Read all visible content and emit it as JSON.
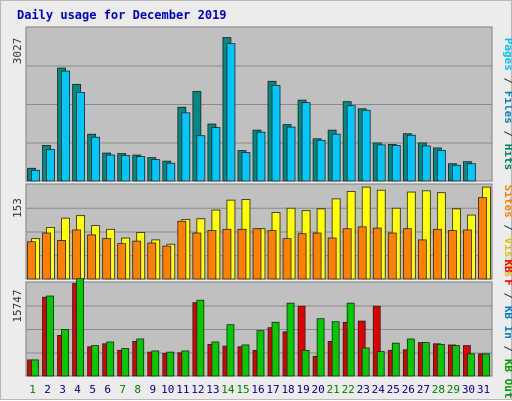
{
  "title": "Daily usage for December 2019",
  "colors": {
    "title": "#0000cc",
    "panel_bg": "#c0c0c0",
    "grid": "#8a8a8a",
    "pages": "#00c0ff",
    "files": "#008080",
    "hits": "#00805c",
    "visits": "#ffff00",
    "sites": "#ff8000",
    "kb_out": "#00c000",
    "kb_in": "#ff0000",
    "slash": "#333333",
    "day_weekday": "#000099",
    "day_weekend": "#008000"
  },
  "right_labels": {
    "top": [
      {
        "text": "Pages",
        "color": "#00c0ff"
      },
      {
        "text": " / ",
        "color": "#333333"
      },
      {
        "text": "Files",
        "color": "#0080c0"
      },
      {
        "text": " / ",
        "color": "#333333"
      },
      {
        "text": "Hits",
        "color": "#008060"
      }
    ],
    "middle": [
      {
        "text": "Sites",
        "color": "#ff8000"
      },
      {
        "text": " / ",
        "color": "#333333"
      },
      {
        "text": "Visits",
        "color": "#e0c000"
      }
    ],
    "bottom": [
      {
        "text": "KB F",
        "color": "#ff0000"
      },
      {
        "text": " / ",
        "color": "#333333"
      },
      {
        "text": "KB In",
        "color": "#0080c0"
      },
      {
        "text": " / ",
        "color": "#333333"
      },
      {
        "text": "KB Out",
        "color": "#00a000"
      }
    ]
  },
  "chart_data": [
    {
      "type": "bar",
      "panel": "hits-files-pages",
      "ymax_label": "3027",
      "ylim": [
        0,
        3027
      ],
      "categories": [
        "1",
        "2",
        "3",
        "4",
        "5",
        "6",
        "7",
        "8",
        "9",
        "10",
        "11",
        "12",
        "13",
        "14",
        "15",
        "16",
        "17",
        "18",
        "19",
        "20",
        "21",
        "22",
        "23",
        "24",
        "25",
        "26",
        "27",
        "28",
        "29",
        "30",
        "31"
      ],
      "weekend_days": [
        "1",
        "7",
        "8",
        "14",
        "15",
        "21",
        "22",
        "28",
        "29"
      ],
      "series": [
        {
          "name": "Hits",
          "values": [
            250,
            700,
            2220,
            1900,
            920,
            550,
            540,
            510,
            460,
            390,
            1450,
            1760,
            1120,
            2820,
            600,
            1000,
            1960,
            1110,
            1590,
            830,
            1000,
            1560,
            1420,
            750,
            720,
            930,
            750,
            650,
            340,
            380,
            0
          ]
        },
        {
          "name": "Files",
          "values": [
            210,
            620,
            2160,
            1740,
            860,
            510,
            500,
            480,
            420,
            350,
            1340,
            890,
            1050,
            2700,
            560,
            960,
            1880,
            1060,
            1540,
            800,
            920,
            1480,
            1390,
            710,
            700,
            900,
            690,
            600,
            310,
            340,
            0
          ]
        },
        {
          "name": "Pages",
          "values": [
            0,
            0,
            0,
            0,
            0,
            0,
            0,
            0,
            0,
            0,
            0,
            0,
            0,
            0,
            0,
            0,
            0,
            0,
            0,
            0,
            0,
            0,
            0,
            0,
            0,
            0,
            0,
            0,
            0,
            0,
            0
          ]
        }
      ]
    },
    {
      "type": "bar",
      "panel": "visits-sites",
      "ymax_label": "153",
      "ylim": [
        0,
        153
      ],
      "categories": [
        "1",
        "2",
        "3",
        "4",
        "5",
        "6",
        "7",
        "8",
        "9",
        "10",
        "11",
        "12",
        "13",
        "14",
        "15",
        "16",
        "17",
        "18",
        "19",
        "20",
        "21",
        "22",
        "23",
        "24",
        "25",
        "26",
        "27",
        "28",
        "29",
        "30",
        "31"
      ],
      "series": [
        {
          "name": "Visits",
          "values": [
            65,
            83,
            98,
            102,
            86,
            80,
            66,
            75,
            63,
            56,
            96,
            97,
            111,
            127,
            128,
            81,
            107,
            114,
            110,
            113,
            129,
            141,
            148,
            143,
            114,
            140,
            142,
            139,
            113,
            103,
            148
          ]
        },
        {
          "name": "Sites",
          "values": [
            60,
            74,
            62,
            79,
            71,
            65,
            57,
            61,
            58,
            53,
            93,
            74,
            78,
            80,
            80,
            81,
            78,
            65,
            73,
            74,
            66,
            81,
            84,
            82,
            74,
            81,
            63,
            80,
            78,
            79,
            131
          ]
        }
      ]
    },
    {
      "type": "bar",
      "panel": "kb",
      "ymax_label": "15747",
      "ylim": [
        0,
        15747
      ],
      "categories": [
        "1",
        "2",
        "3",
        "4",
        "5",
        "6",
        "7",
        "8",
        "9",
        "10",
        "11",
        "12",
        "13",
        "14",
        "15",
        "16",
        "17",
        "18",
        "19",
        "20",
        "21",
        "22",
        "23",
        "24",
        "25",
        "26",
        "27",
        "28",
        "29",
        "30",
        "31"
      ],
      "series": [
        {
          "name": "KB F",
          "values": [
            2700,
            13200,
            6800,
            15500,
            4900,
            5400,
            4300,
            5800,
            4000,
            3800,
            3900,
            12300,
            5300,
            5000,
            4900,
            4300,
            8100,
            7400,
            11700,
            3300,
            5800,
            9000,
            9200,
            11700,
            4300,
            4400,
            5600,
            5400,
            5200,
            5100,
            3700
          ]
        },
        {
          "name": "KB In",
          "values": [
            0,
            0,
            0,
            0,
            0,
            0,
            0,
            0,
            0,
            0,
            0,
            0,
            0,
            0,
            0,
            0,
            0,
            0,
            0,
            0,
            0,
            0,
            0,
            0,
            0,
            0,
            0,
            0,
            0,
            0,
            0
          ]
        },
        {
          "name": "KB Out",
          "values": [
            2700,
            13400,
            7800,
            16300,
            5100,
            5700,
            4600,
            6200,
            4200,
            4000,
            4200,
            12700,
            5700,
            8600,
            5200,
            7600,
            9000,
            12200,
            4300,
            9600,
            9100,
            12200,
            4700,
            4100,
            5500,
            6200,
            5600,
            5300,
            5100,
            3700,
            3700
          ]
        }
      ]
    }
  ]
}
